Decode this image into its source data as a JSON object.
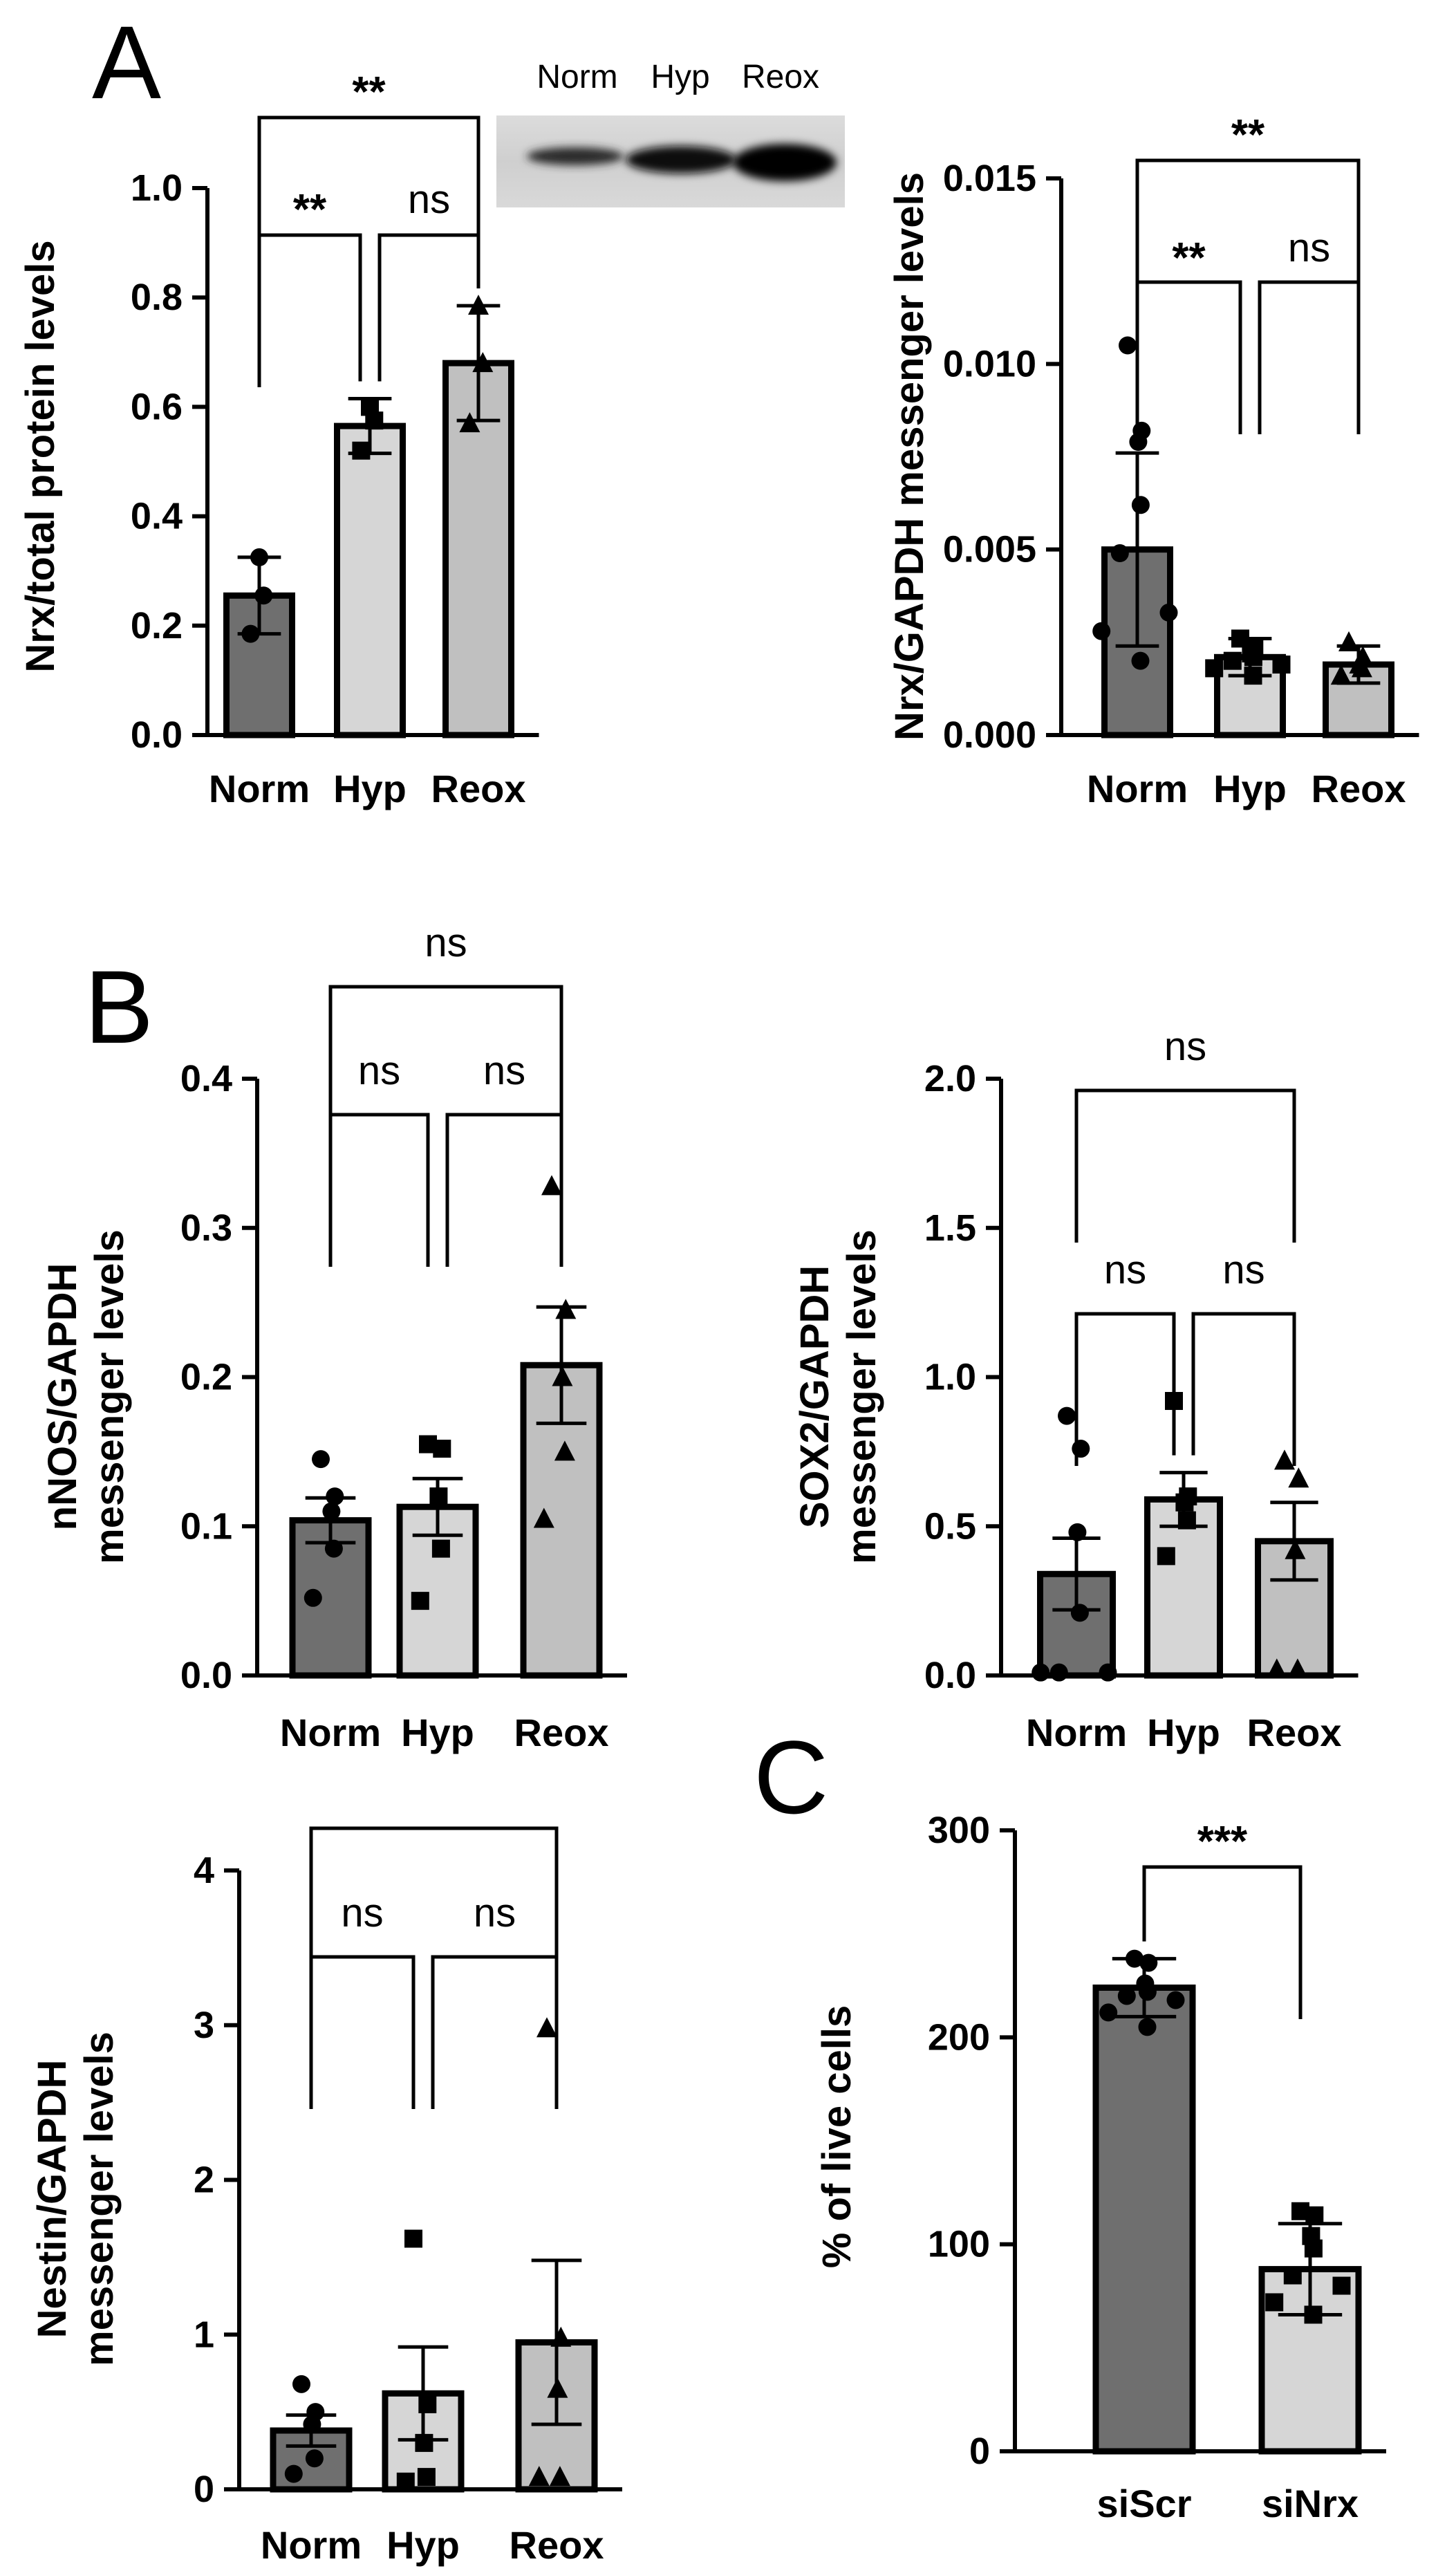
{
  "figure": {
    "panel_letters": [
      "A",
      "B",
      "C"
    ],
    "blot_labels": [
      "Norm",
      "Hyp",
      "Reox"
    ]
  },
  "colors": {
    "dark": "#6f6f6f",
    "light": "#d6d6d6",
    "mid": "#c0c0c0",
    "outline": "#000000"
  },
  "chart_data": [
    {
      "id": "A1",
      "type": "bar",
      "title": "",
      "xlabel": "",
      "ylabel": "Nrx/total protein levels",
      "ylim": [
        0,
        1.0
      ],
      "yticks": [
        0.0,
        0.2,
        0.4,
        0.6,
        0.8,
        1.0
      ],
      "ytick_labels": [
        "0.0",
        "0.2",
        "0.4",
        "0.6",
        "0.8",
        "1.0"
      ],
      "categories": [
        "Norm",
        "Hyp",
        "Reox"
      ],
      "values": [
        0.255,
        0.565,
        0.68
      ],
      "errors": [
        0.07,
        0.05,
        0.105
      ],
      "points": [
        [
          0.325,
          0.255,
          0.185
        ],
        [
          0.6,
          0.575,
          0.52
        ],
        [
          0.785,
          0.68,
          0.57
        ]
      ],
      "markers": [
        "circle",
        "square",
        "triangle"
      ],
      "comparisons": [
        {
          "from": 0,
          "to": 1,
          "label": "**"
        },
        {
          "from": 1,
          "to": 2,
          "label": "ns"
        },
        {
          "from": 0,
          "to": 2,
          "label": "**"
        }
      ]
    },
    {
      "id": "A2",
      "type": "bar",
      "title": "",
      "xlabel": "",
      "ylabel": "Nrx/GAPDH messenger levels",
      "ylim": [
        0,
        0.015
      ],
      "yticks": [
        0.0,
        0.005,
        0.01,
        0.015
      ],
      "ytick_labels": [
        "0.000",
        "0.005",
        "0.010",
        "0.015"
      ],
      "categories": [
        "Norm",
        "Hyp",
        "Reox"
      ],
      "values": [
        0.005,
        0.0021,
        0.0019
      ],
      "errors": [
        0.0026,
        0.0005,
        0.0005
      ],
      "points": [
        [
          0.0105,
          0.0082,
          0.0079,
          0.0062,
          0.0049,
          0.0033,
          0.0028,
          0.002
        ],
        [
          0.0026,
          0.0024,
          0.0022,
          0.0021,
          0.002,
          0.0019,
          0.0018,
          0.0016
        ],
        [
          0.0025,
          0.0021,
          0.0019,
          0.0018,
          0.0016
        ]
      ],
      "markers": [
        "circle",
        "square",
        "triangle"
      ],
      "comparisons": [
        {
          "from": 0,
          "to": 1,
          "label": "**"
        },
        {
          "from": 1,
          "to": 2,
          "label": "ns"
        },
        {
          "from": 0,
          "to": 2,
          "label": "**"
        }
      ]
    },
    {
      "id": "B1",
      "type": "bar",
      "title": "",
      "xlabel": "",
      "ylabel": [
        "nNOS/GAPDH",
        "messenger levels"
      ],
      "ylim": [
        0,
        0.4
      ],
      "yticks": [
        0.0,
        0.1,
        0.2,
        0.3,
        0.4
      ],
      "ytick_labels": [
        "0.0",
        "0.1",
        "0.2",
        "0.3",
        "0.4"
      ],
      "categories": [
        "Norm",
        "Hyp",
        "Reox"
      ],
      "values": [
        0.104,
        0.113,
        0.208
      ],
      "errors": [
        0.015,
        0.019,
        0.039
      ],
      "points": [
        [
          0.145,
          0.12,
          0.11,
          0.085,
          0.052
        ],
        [
          0.155,
          0.152,
          0.12,
          0.085,
          0.05
        ],
        [
          0.328,
          0.245,
          0.2,
          0.15,
          0.105
        ]
      ],
      "markers": [
        "circle",
        "square",
        "triangle"
      ],
      "comparisons": [
        {
          "from": 0,
          "to": 1,
          "label": "ns"
        },
        {
          "from": 1,
          "to": 2,
          "label": "ns"
        },
        {
          "from": 0,
          "to": 2,
          "label": "ns"
        }
      ]
    },
    {
      "id": "B2",
      "type": "bar",
      "title": "",
      "xlabel": "",
      "ylabel": [
        "SOX2/GAPDH",
        "messenger levels"
      ],
      "ylim": [
        0,
        2.0
      ],
      "yticks": [
        0.0,
        0.5,
        1.0,
        1.5,
        2.0
      ],
      "ytick_labels": [
        "0.0",
        "0.5",
        "1.0",
        "1.5",
        "2.0"
      ],
      "categories": [
        "Norm",
        "Hyp",
        "Reox"
      ],
      "values": [
        0.34,
        0.59,
        0.45
      ],
      "errors": [
        0.12,
        0.09,
        0.13
      ],
      "points": [
        [
          0.87,
          0.76,
          0.48,
          0.21,
          0.01,
          0.01,
          0.01
        ],
        [
          0.92,
          0.6,
          0.58,
          0.52,
          0.4
        ],
        [
          0.72,
          0.66,
          0.42,
          0.02,
          0.02
        ]
      ],
      "markers": [
        "circle",
        "square",
        "triangle"
      ],
      "comparisons": [
        {
          "from": 0,
          "to": 1,
          "label": "ns"
        },
        {
          "from": 1,
          "to": 2,
          "label": "ns"
        },
        {
          "from": 0,
          "to": 2,
          "label": "ns"
        }
      ]
    },
    {
      "id": "B3",
      "type": "bar",
      "title": "",
      "xlabel": "",
      "ylabel": [
        "Nestin/GAPDH",
        "messenger levels"
      ],
      "ylim": [
        0,
        4
      ],
      "yticks": [
        0,
        1,
        2,
        3,
        4
      ],
      "ytick_labels": [
        "0",
        "1",
        "2",
        "3",
        "4"
      ],
      "categories": [
        "Norm",
        "Hyp",
        "Reox"
      ],
      "values": [
        0.38,
        0.62,
        0.95
      ],
      "errors": [
        0.1,
        0.3,
        0.53
      ],
      "points": [
        [
          0.68,
          0.5,
          0.42,
          0.2,
          0.1
        ],
        [
          1.62,
          0.55,
          0.3,
          0.08,
          0.05
        ],
        [
          2.98,
          0.98,
          0.65,
          0.08,
          0.08
        ]
      ],
      "markers": [
        "circle",
        "square",
        "triangle"
      ],
      "comparisons": [
        {
          "from": 0,
          "to": 1,
          "label": "ns"
        },
        {
          "from": 1,
          "to": 2,
          "label": "ns"
        },
        {
          "from": 0,
          "to": 2,
          "label": ""
        }
      ]
    },
    {
      "id": "C",
      "type": "bar",
      "title": "",
      "xlabel": "",
      "ylabel": "% of live cells",
      "ylim": [
        0,
        300
      ],
      "yticks": [
        0,
        100,
        200,
        300
      ],
      "ytick_labels": [
        "0",
        "100",
        "200",
        "300"
      ],
      "categories": [
        "siScr",
        "siNrx"
      ],
      "values": [
        224,
        88
      ],
      "errors": [
        14,
        22
      ],
      "points": [
        [
          238,
          236,
          226,
          222,
          220,
          218,
          212,
          205
        ],
        [
          116,
          114,
          104,
          98,
          85,
          80,
          72,
          66
        ]
      ],
      "markers": [
        "circle",
        "square"
      ],
      "comparisons": [
        {
          "from": 0,
          "to": 1,
          "label": "***"
        }
      ]
    }
  ]
}
